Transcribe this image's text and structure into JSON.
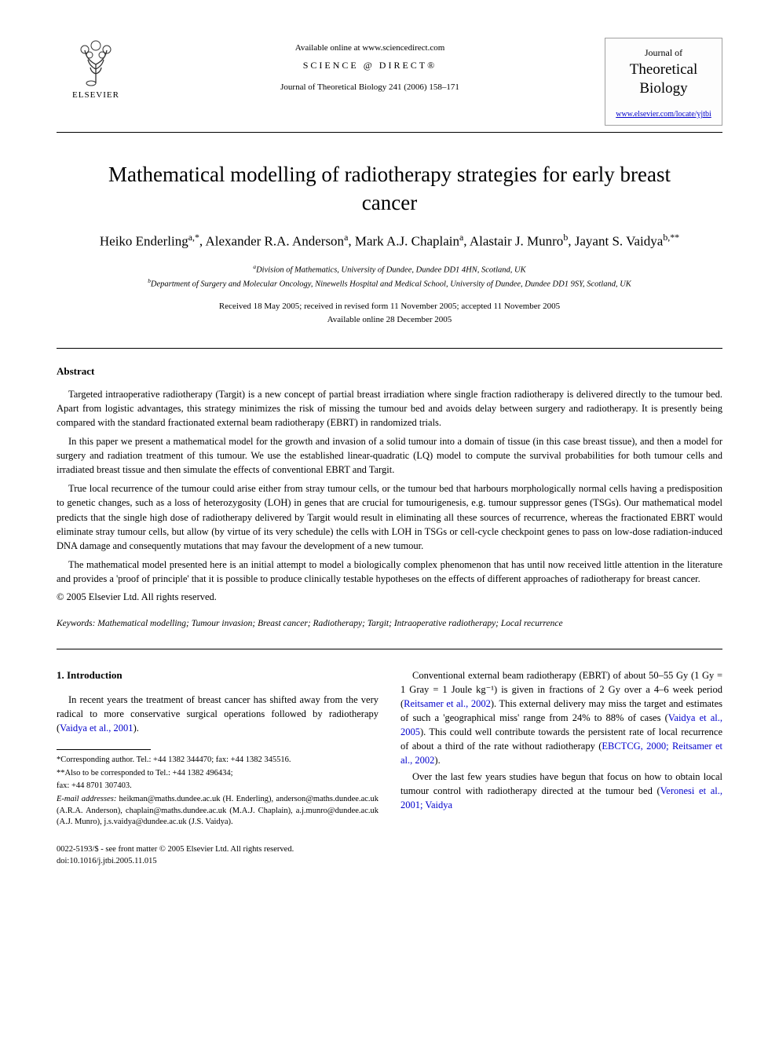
{
  "header": {
    "available_text": "Available online at www.sciencedirect.com",
    "sciencedirect": "SCIENCE @ DIRECT®",
    "journal_ref": "Journal of Theoretical Biology 241 (2006) 158–171",
    "elsevier_label": "ELSEVIER",
    "journal_box": {
      "line1": "Journal of",
      "line2": "Theoretical",
      "line3": "Biology",
      "link": "www.elsevier.com/locate/yjtbi"
    }
  },
  "title": "Mathematical modelling of radiotherapy strategies for early breast cancer",
  "authors_html": "Heiko Enderling<sup>a,*</sup>, Alexander R.A. Anderson<sup>a</sup>, Mark A.J. Chaplain<sup>a</sup>, Alastair J. Munro<sup>b</sup>, Jayant S. Vaidya<sup>b,**</sup>",
  "affiliations": {
    "a": "Division of Mathematics, University of Dundee, Dundee DD1 4HN, Scotland, UK",
    "b": "Department of Surgery and Molecular Oncology, Ninewells Hospital and Medical School, University of Dundee, Dundee DD1 9SY, Scotland, UK"
  },
  "dates": {
    "received": "Received 18 May 2005; received in revised form 11 November 2005; accepted 11 November 2005",
    "online": "Available online 28 December 2005"
  },
  "abstract": {
    "heading": "Abstract",
    "paragraphs": [
      "Targeted intraoperative radiotherapy (Targit) is a new concept of partial breast irradiation where single fraction radiotherapy is delivered directly to the tumour bed. Apart from logistic advantages, this strategy minimizes the risk of missing the tumour bed and avoids delay between surgery and radiotherapy. It is presently being compared with the standard fractionated external beam radiotherapy (EBRT) in randomized trials.",
      "In this paper we present a mathematical model for the growth and invasion of a solid tumour into a domain of tissue (in this case breast tissue), and then a model for surgery and radiation treatment of this tumour. We use the established linear-quadratic (LQ) model to compute the survival probabilities for both tumour cells and irradiated breast tissue and then simulate the effects of conventional EBRT and Targit.",
      "True local recurrence of the tumour could arise either from stray tumour cells, or the tumour bed that harbours morphologically normal cells having a predisposition to genetic changes, such as a loss of heterozygosity (LOH) in genes that are crucial for tumourigenesis, e.g. tumour suppressor genes (TSGs). Our mathematical model predicts that the single high dose of radiotherapy delivered by Targit would result in eliminating all these sources of recurrence, whereas the fractionated EBRT would eliminate stray tumour cells, but allow (by virtue of its very schedule) the cells with LOH in TSGs or cell-cycle checkpoint genes to pass on low-dose radiation-induced DNA damage and consequently mutations that may favour the development of a new tumour.",
      "The mathematical model presented here is an initial attempt to model a biologically complex phenomenon that has until now received little attention in the literature and provides a 'proof of principle' that it is possible to produce clinically testable hypotheses on the effects of different approaches of radiotherapy for breast cancer."
    ],
    "copyright": "© 2005 Elsevier Ltd. All rights reserved."
  },
  "keywords": {
    "label": "Keywords:",
    "text": "Mathematical modelling; Tumour invasion; Breast cancer; Radiotherapy; Targit; Intraoperative radiotherapy; Local recurrence"
  },
  "section1": {
    "heading": "1. Introduction",
    "left_p1": "In recent years the treatment of breast cancer has shifted away from the very radical to more conservative surgical operations followed by radiotherapy (",
    "left_ref1": "Vaidya et al., 2001",
    "left_p1_end": ").",
    "right_p1_a": "Conventional external beam radiotherapy (EBRT) of about 50–55 Gy (1 Gy = 1 Gray = 1 Joule kg⁻¹) is given in fractions of 2 Gy over a 4–6 week period (",
    "right_ref1": "Reitsamer et al., 2002",
    "right_p1_b": "). This external delivery may miss the target and estimates of such a 'geographical miss' range from 24% to 88% of cases (",
    "right_ref2": "Vaidya et al., 2005",
    "right_p1_c": "). This could well contribute towards the persistent rate of local recurrence of about a third of the rate without radiotherapy (",
    "right_ref3": "EBCTCG, 2000; Reitsamer et al., 2002",
    "right_p1_d": ").",
    "right_p2_a": "Over the last few years studies have begun that focus on how to obtain local tumour control with radiotherapy directed at the tumour bed (",
    "right_ref4": "Veronesi et al., 2001; Vaidya"
  },
  "footnotes": {
    "corr1": "*Corresponding author. Tel.: +44 1382 344470; fax: +44 1382 345516.",
    "corr2": "**Also to be corresponded to Tel.: +44 1382 496434;",
    "fax": "fax: +44 8701 307403.",
    "emails_label": "E-mail addresses:",
    "emails": "heikman@maths.dundee.ac.uk (H. Enderling), anderson@maths.dundee.ac.uk (A.R.A. Anderson), chaplain@maths.dundee.ac.uk (M.A.J. Chaplain), a.j.munro@dundee.ac.uk (A.J. Munro), j.s.vaidya@dundee.ac.uk (J.S. Vaidya)."
  },
  "footer": {
    "issn": "0022-5193/$ - see front matter © 2005 Elsevier Ltd. All rights reserved.",
    "doi": "doi:10.1016/j.jtbi.2005.11.015"
  }
}
